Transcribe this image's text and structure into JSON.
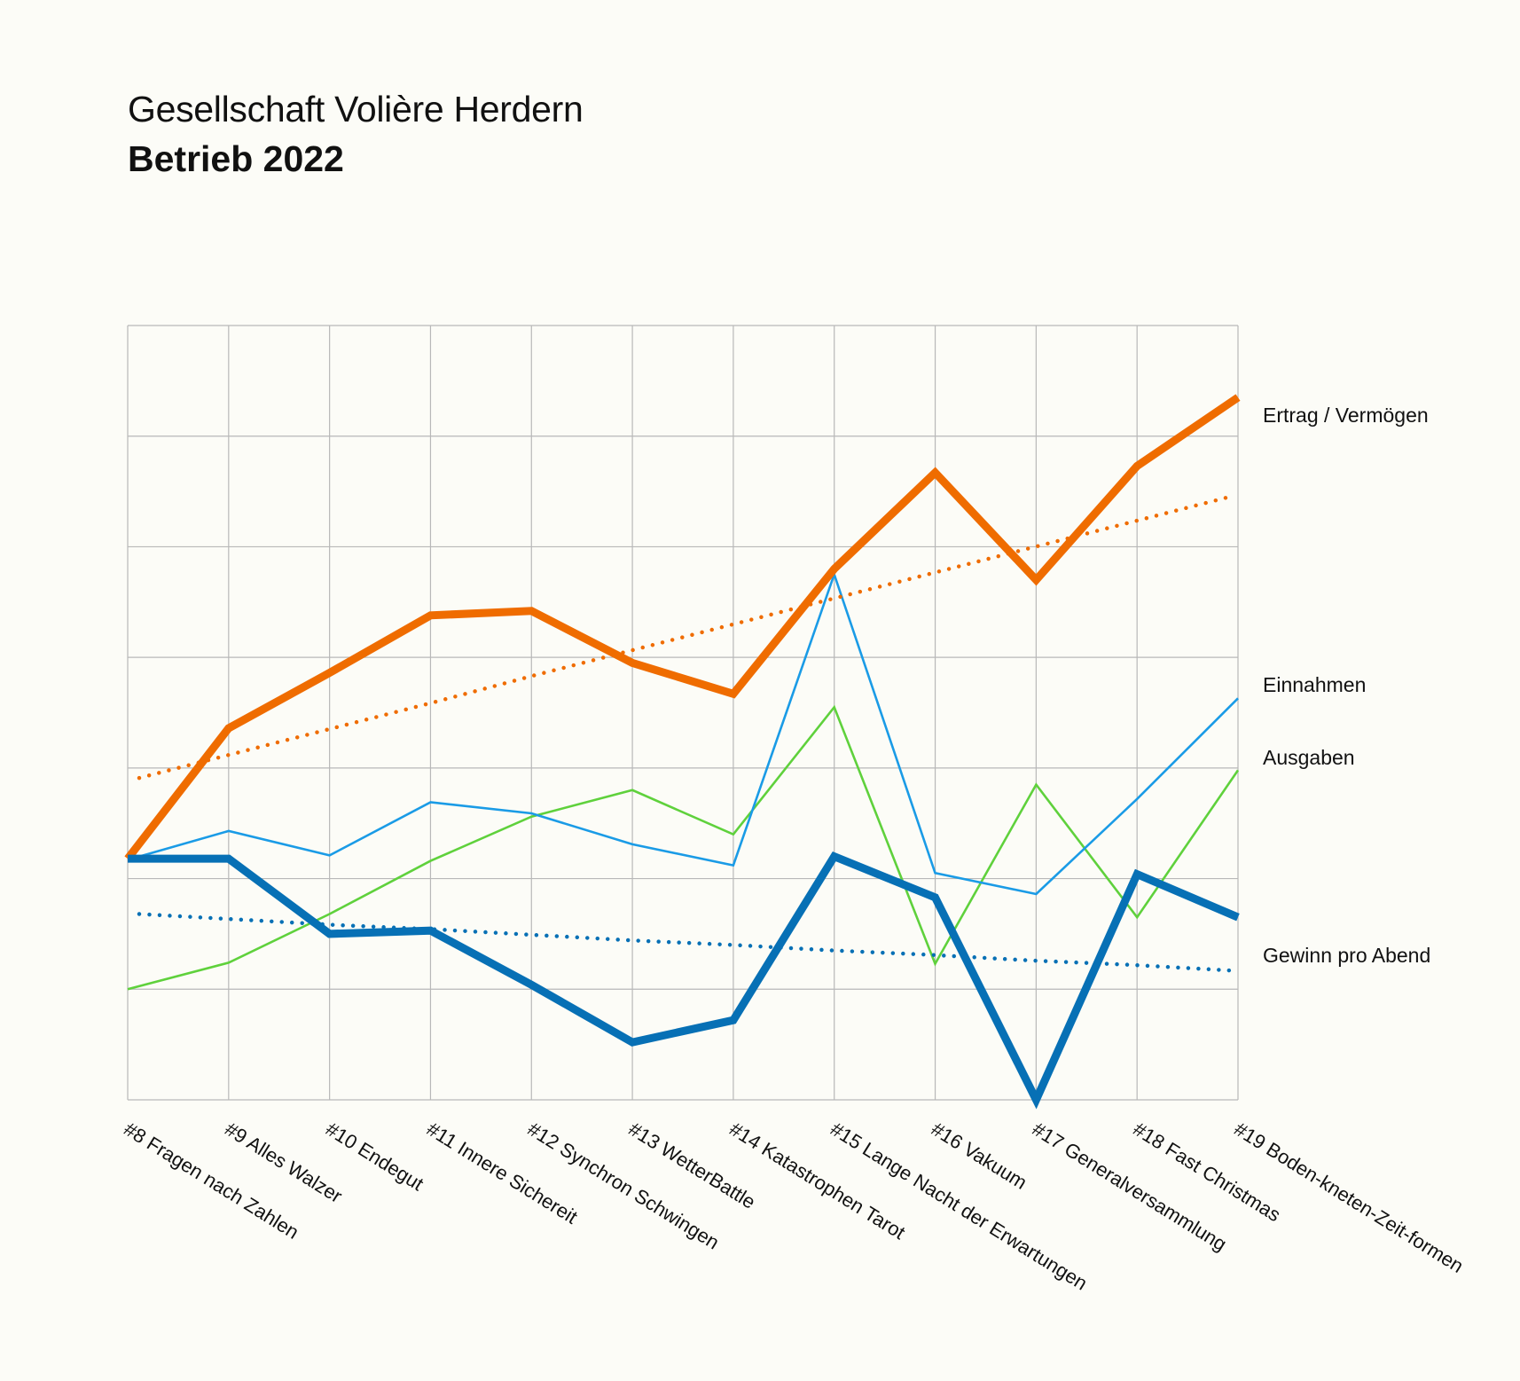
{
  "header": {
    "title": "Gesellschaft Volière Herdern",
    "subtitle": "Betrieb 2022"
  },
  "chart_data": {
    "type": "line",
    "title": "Gesellschaft Volière Herdern",
    "subtitle": "Betrieb 2022",
    "xlabel": "",
    "ylabel": "",
    "ylim": [
      0,
      7
    ],
    "grid": true,
    "y_tick_labels_shown": false,
    "categories": [
      "#8 Fragen nach Zahlen",
      "#9 Alles Walzer",
      "#10 Endegut",
      "#11 Innere Sichereit",
      "#12 Synchron Schwingen",
      "#13 WetterBattle",
      "#14 Katastrophen Tarot",
      "#15 Lange Nacht der Erwartungen",
      "#16 Vakuum",
      "#17 Generalversammlung",
      "#18 Fast Christmas",
      "#19 Boden-kneten-Zeit-formen"
    ],
    "series": [
      {
        "name": "Ertrag / Vermögen",
        "color": "#ef6c00",
        "style": "thick",
        "values": [
          2.18,
          3.36,
          3.86,
          4.38,
          4.42,
          3.95,
          3.67,
          4.8,
          5.67,
          4.7,
          5.73,
          6.35
        ]
      },
      {
        "name": "Ertrag / Vermögen trend",
        "color": "#ef6c00",
        "style": "dotted",
        "values": [
          2.91,
          3.14,
          3.37,
          3.6,
          3.84,
          4.07,
          4.3,
          4.53,
          4.76,
          4.99,
          5.22,
          5.45
        ]
      },
      {
        "name": "Einnahmen",
        "color": "#1a9be6",
        "style": "thin",
        "values": [
          2.17,
          2.43,
          2.21,
          2.69,
          2.59,
          2.31,
          2.12,
          4.75,
          2.05,
          1.86,
          2.72,
          3.63
        ]
      },
      {
        "name": "Ausgaben",
        "color": "#5fd13c",
        "style": "thin",
        "values": [
          1.0,
          1.24,
          1.68,
          2.16,
          2.56,
          2.8,
          2.4,
          3.55,
          1.23,
          2.85,
          1.65,
          2.98
        ]
      },
      {
        "name": "Gewinn pro Abend",
        "color": "#0770b5",
        "style": "thick",
        "values": [
          2.18,
          2.18,
          1.5,
          1.53,
          1.04,
          0.52,
          0.72,
          2.2,
          1.83,
          0.0,
          2.04,
          1.65
        ]
      },
      {
        "name": "Gewinn pro Abend trend",
        "color": "#0770b5",
        "style": "dotted",
        "values": [
          1.68,
          1.63,
          1.58,
          1.54,
          1.49,
          1.44,
          1.4,
          1.35,
          1.31,
          1.26,
          1.22,
          1.17
        ]
      }
    ],
    "legend": "right, labels at line ends",
    "series_labels": [
      {
        "text": "Ertrag / Vermögen",
        "series": "Ertrag / Vermögen"
      },
      {
        "text": "Einnahmen",
        "series": "Einnahmen"
      },
      {
        "text": "Ausgaben",
        "series": "Ausgaben"
      },
      {
        "text": "Gewinn pro Abend",
        "series": "Gewinn pro Abend"
      }
    ]
  }
}
